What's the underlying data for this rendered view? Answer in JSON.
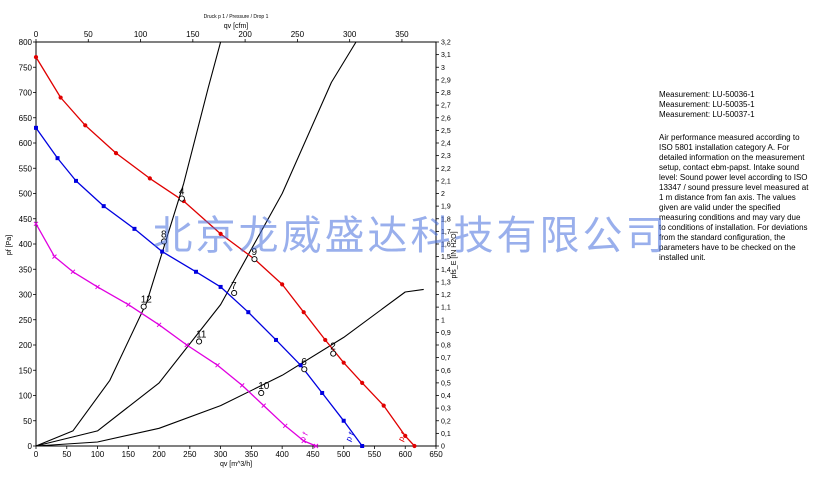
{
  "chart_data": {
    "type": "line",
    "title": "Druck p 1 / Pressure / Drop 1",
    "xlabel_top": "qv [cfm]",
    "xlabel_bottom": "qv [m^3/h]",
    "ylabel_left": "pf [Pa]",
    "ylabel_right": "pfs_E [IN H2O]",
    "xlim": [
      0,
      650
    ],
    "ylim": [
      0,
      800
    ],
    "x_ticks": [
      0,
      50,
      100,
      150,
      200,
      250,
      300,
      350,
      400,
      450,
      500,
      550,
      600,
      650
    ],
    "y_ticks": [
      0,
      50,
      100,
      150,
      200,
      250,
      300,
      350,
      400,
      450,
      500,
      550,
      600,
      650,
      700,
      750,
      800
    ],
    "top_ticks": [
      0,
      50,
      100,
      150,
      200,
      250,
      300,
      350
    ],
    "right_ticks": [
      "0",
      "0,1",
      "0,2",
      "0,3",
      "0,4",
      "0,5",
      "0,6",
      "0,7",
      "0,8",
      "0,9",
      "1",
      "1,1",
      "1,2",
      "1,3",
      "1,4",
      "1,5",
      "1,6",
      "1,7",
      "1,8",
      "1,9",
      "2",
      "2,1",
      "2,2",
      "2,3",
      "2,4",
      "2,5",
      "2,6",
      "2,7",
      "2,8",
      "2,9",
      "3",
      "3,1",
      "3,2"
    ],
    "grid": false,
    "series": [
      {
        "name": "pf_E",
        "label": "p f",
        "color": "#e00000",
        "marker": "circle",
        "x": [
          0,
          40,
          80,
          130,
          185,
          240,
          300,
          355,
          400,
          435,
          470,
          500,
          530,
          565,
          600,
          615
        ],
        "y": [
          770,
          690,
          635,
          580,
          530,
          485,
          420,
          370,
          320,
          265,
          210,
          165,
          125,
          80,
          20,
          0
        ]
      },
      {
        "name": "pf_E",
        "label": "p f",
        "color": "#0000e0",
        "marker": "square",
        "x": [
          0,
          35,
          65,
          110,
          160,
          205,
          260,
          300,
          345,
          390,
          430,
          465,
          500,
          530
        ],
        "y": [
          630,
          570,
          525,
          475,
          430,
          385,
          345,
          315,
          265,
          210,
          160,
          105,
          50,
          0
        ]
      },
      {
        "name": "pf_E",
        "label": "p f",
        "color": "#e000e0",
        "marker": "x",
        "x": [
          0,
          30,
          60,
          100,
          150,
          200,
          245,
          295,
          335,
          370,
          405,
          435,
          455
        ],
        "y": [
          440,
          375,
          345,
          315,
          280,
          240,
          200,
          160,
          120,
          80,
          40,
          10,
          0
        ]
      }
    ],
    "system_curves": [
      {
        "name": "system-curve-steep",
        "color": "#000000",
        "x": [
          0,
          60,
          120,
          180,
          240,
          280,
          300
        ],
        "y": [
          0,
          30,
          130,
          285,
          520,
          710,
          800
        ]
      },
      {
        "name": "system-curve-mid",
        "color": "#000000",
        "x": [
          0,
          100,
          200,
          300,
          400,
          480,
          520
        ],
        "y": [
          0,
          30,
          125,
          280,
          500,
          720,
          800
        ]
      },
      {
        "name": "system-curve-shallow",
        "color": "#000000",
        "x": [
          0,
          100,
          200,
          300,
          400,
          500,
          600,
          630
        ],
        "y": [
          0,
          8,
          35,
          80,
          140,
          215,
          305,
          310
        ]
      }
    ],
    "operating_points": [
      {
        "label": "2",
        "x": 483,
        "y": 183
      },
      {
        "label": "4",
        "x": 237,
        "y": 490
      },
      {
        "label": "6",
        "x": 436,
        "y": 152
      },
      {
        "label": "7",
        "x": 322,
        "y": 303
      },
      {
        "label": "8",
        "x": 208,
        "y": 405
      },
      {
        "label": "9",
        "x": 355,
        "y": 370
      },
      {
        "label": "10",
        "x": 366,
        "y": 105
      },
      {
        "label": "11",
        "x": 265,
        "y": 207
      },
      {
        "label": "12",
        "x": 175,
        "y": 276
      }
    ]
  },
  "notes": {
    "measurements": [
      "Measurement: LU-50036-1",
      "Measurement: LU-50035-1",
      "Measurement: LU-50037-1"
    ],
    "description": "Air performance measured according to ISO 5801 installation category A. For detailed information on the measurement setup, contact ebm-papst. Intake sound level: Sound power level according to ISO 13347 / sound pressure level measured at 1 m distance from fan axis. The values given are valid under the specified measuring conditions and may vary due to conditions of installation. For deviations from the standard configuration, the parameters have to be checked on the installed unit."
  },
  "watermark": "北京龙威盛达科技有限公司"
}
